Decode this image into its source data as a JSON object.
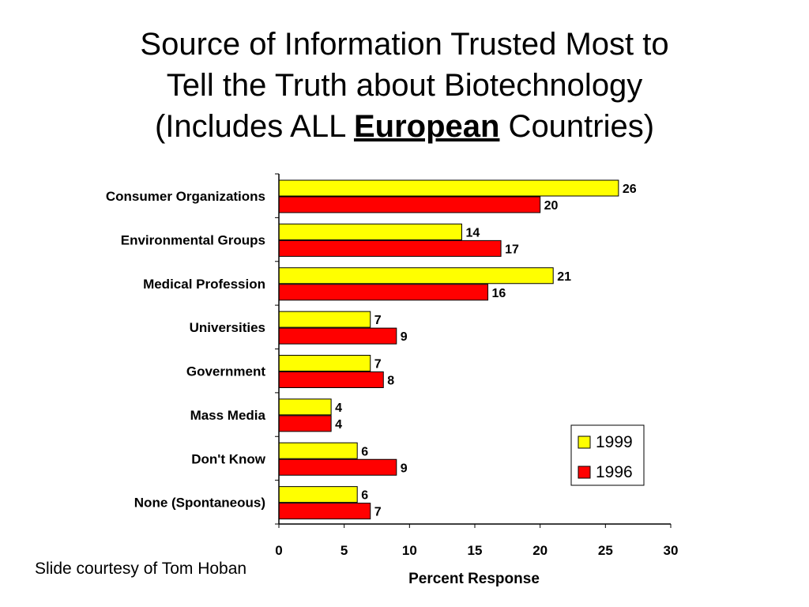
{
  "title": {
    "line1": "Source of Information Trusted Most to",
    "line2": "Tell the Truth about Biotechnology",
    "line3_before": "(Includes ALL ",
    "line3_emphasis": "European",
    "line3_after": " Countries)"
  },
  "footer": "Slide courtesy of Tom Hoban",
  "colors": {
    "series_1999": "#ffff00",
    "series_1996": "#ff0000",
    "outline": "#000000"
  },
  "chart_data": {
    "type": "bar",
    "orientation": "horizontal",
    "categories": [
      "Consumer Organizations",
      "Environmental Groups",
      "Medical Profession",
      "Universities",
      "Government",
      "Mass Media",
      "Don't Know",
      "None (Spontaneous)"
    ],
    "series": [
      {
        "name": "1999",
        "values": [
          26,
          14,
          21,
          7,
          7,
          4,
          6,
          6
        ]
      },
      {
        "name": "1996",
        "values": [
          20,
          17,
          16,
          9,
          8,
          4,
          9,
          7
        ]
      }
    ],
    "xlabel": "Percent Response",
    "xlim": [
      0,
      30
    ],
    "xticks": [
      0,
      5,
      10,
      15,
      20,
      25,
      30
    ],
    "grid": false,
    "legend_position": "bottom-right",
    "data_labels": true
  }
}
